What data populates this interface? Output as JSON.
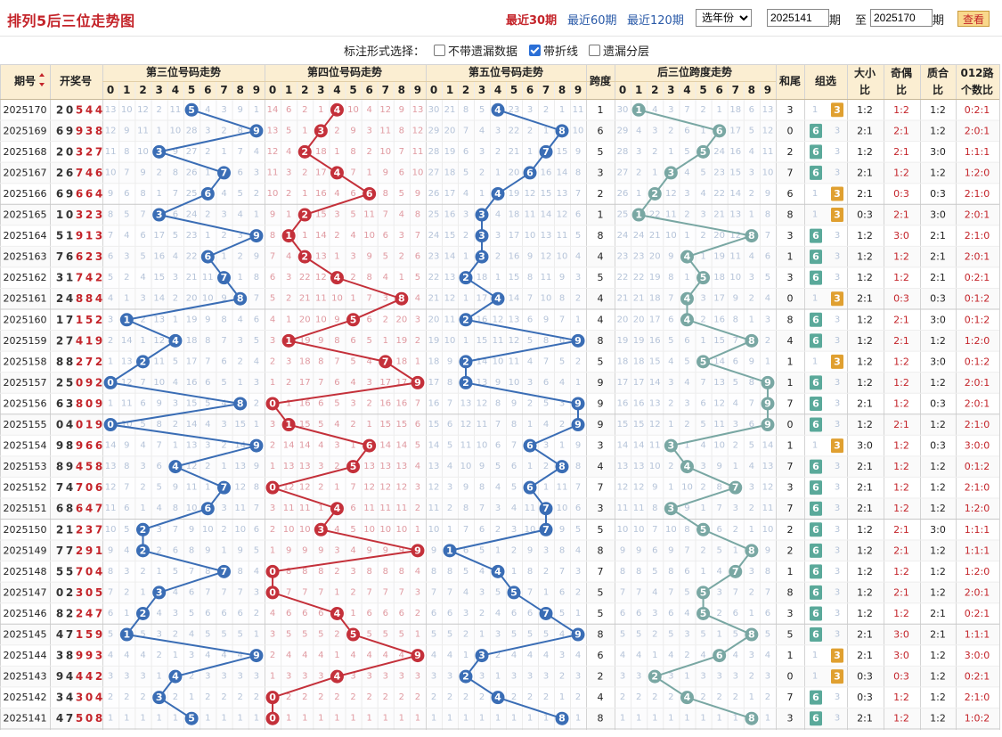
{
  "page": {
    "title": "排列5后三位走势图"
  },
  "ranges": [
    {
      "label": "最近30期",
      "active": true
    },
    {
      "label": "最近60期",
      "active": false
    },
    {
      "label": "最近120期",
      "active": false
    }
  ],
  "filter": {
    "year_label": "选年份",
    "start_issue": "2025141",
    "issue_unit": "期",
    "to_label": "至",
    "end_issue": "2025170",
    "query_label": "查看"
  },
  "options": {
    "label": "标注形式选择：",
    "items": [
      {
        "label": "不带遗漏数据",
        "checked": false
      },
      {
        "label": "带折线",
        "checked": true
      },
      {
        "label": "遗漏分层",
        "checked": false
      }
    ]
  },
  "colors": {
    "header_bg": "#fbeed2",
    "third": "#3a6db5",
    "fourth": "#c4303a",
    "fifth": "#3a6db5",
    "span": "#79a7a3",
    "badge_green": "#5aa99a",
    "badge_orange": "#e0a030",
    "red_text": "#c4242a"
  },
  "headers": {
    "issue": "期号",
    "sort_icon": "sort-arrows-icon",
    "draw": "开奖号",
    "third_group": "第三位号码走势",
    "fourth_group": "第四位号码走势",
    "fifth_group": "第五位号码走势",
    "span": "跨度",
    "span_group": "后三位跨度走势",
    "tail": "和尾",
    "combo": "组选",
    "size_l1": "大小",
    "size_l2": "比",
    "parity_l1": "奇偶",
    "parity_l2": "比",
    "prime_l1": "质合",
    "prime_l2": "比",
    "road_l1": "012路",
    "road_l2": "个数比",
    "digits": [
      "0",
      "1",
      "2",
      "3",
      "4",
      "5",
      "6",
      "7",
      "8",
      "9"
    ]
  },
  "chart_data": {
    "type": "table",
    "rows": [
      {
        "issue": "2025170",
        "draw": "20544",
        "d3": 5,
        "d4": 4,
        "d5": 4,
        "span": 1,
        "tail": 3,
        "group": "3",
        "size": "1:2",
        "parity": "1:2",
        "prime": "1:2",
        "road": "0:2:1"
      },
      {
        "issue": "2025169",
        "draw": "69938",
        "d3": 9,
        "d4": 3,
        "d5": 8,
        "span": 6,
        "tail": 0,
        "group": "6",
        "size": "2:1",
        "parity": "2:1",
        "prime": "1:2",
        "road": "2:0:1"
      },
      {
        "issue": "2025168",
        "draw": "20327",
        "d3": 3,
        "d4": 2,
        "d5": 7,
        "span": 5,
        "tail": 2,
        "group": "6",
        "size": "1:2",
        "parity": "2:1",
        "prime": "3:0",
        "road": "1:1:1"
      },
      {
        "issue": "2025167",
        "draw": "26746",
        "d3": 7,
        "d4": 4,
        "d5": 6,
        "span": 3,
        "tail": 7,
        "group": "6",
        "size": "2:1",
        "parity": "1:2",
        "prime": "1:2",
        "road": "1:2:0"
      },
      {
        "issue": "2025166",
        "draw": "69664",
        "d3": 6,
        "d4": 6,
        "d5": 4,
        "span": 2,
        "tail": 6,
        "group": "3",
        "size": "2:1",
        "parity": "0:3",
        "prime": "0:3",
        "road": "2:1:0"
      },
      {
        "issue": "2025165",
        "draw": "10323",
        "d3": 3,
        "d4": 2,
        "d5": 3,
        "span": 1,
        "tail": 8,
        "group": "3",
        "size": "0:3",
        "parity": "2:1",
        "prime": "3:0",
        "road": "2:0:1"
      },
      {
        "issue": "2025164",
        "draw": "51913",
        "d3": 9,
        "d4": 1,
        "d5": 3,
        "span": 8,
        "tail": 3,
        "group": "6",
        "size": "1:2",
        "parity": "3:0",
        "prime": "2:1",
        "road": "2:1:0"
      },
      {
        "issue": "2025163",
        "draw": "76623",
        "d3": 6,
        "d4": 2,
        "d5": 3,
        "span": 4,
        "tail": 1,
        "group": "6",
        "size": "1:2",
        "parity": "1:2",
        "prime": "2:1",
        "road": "2:0:1"
      },
      {
        "issue": "2025162",
        "draw": "31742",
        "d3": 7,
        "d4": 4,
        "d5": 2,
        "span": 5,
        "tail": 3,
        "group": "6",
        "size": "1:2",
        "parity": "1:2",
        "prime": "2:1",
        "road": "0:2:1"
      },
      {
        "issue": "2025161",
        "draw": "24884",
        "d3": 8,
        "d4": 8,
        "d5": 4,
        "span": 4,
        "tail": 0,
        "group": "3",
        "size": "2:1",
        "parity": "0:3",
        "prime": "0:3",
        "road": "0:1:2"
      },
      {
        "issue": "2025160",
        "draw": "17152",
        "d3": 1,
        "d4": 5,
        "d5": 2,
        "span": 4,
        "tail": 8,
        "group": "6",
        "size": "1:2",
        "parity": "2:1",
        "prime": "3:0",
        "road": "0:1:2"
      },
      {
        "issue": "2025159",
        "draw": "27419",
        "d3": 4,
        "d4": 1,
        "d5": 9,
        "span": 8,
        "tail": 4,
        "group": "6",
        "size": "1:2",
        "parity": "2:1",
        "prime": "1:2",
        "road": "1:2:0"
      },
      {
        "issue": "2025158",
        "draw": "88272",
        "d3": 2,
        "d4": 7,
        "d5": 2,
        "span": 5,
        "tail": 1,
        "group": "3",
        "size": "1:2",
        "parity": "1:2",
        "prime": "3:0",
        "road": "0:1:2"
      },
      {
        "issue": "2025157",
        "draw": "25092",
        "d3": 0,
        "d4": 9,
        "d5": 2,
        "span": 9,
        "tail": 1,
        "group": "6",
        "size": "1:2",
        "parity": "1:2",
        "prime": "1:2",
        "road": "2:0:1"
      },
      {
        "issue": "2025156",
        "draw": "63809",
        "d3": 8,
        "d4": 0,
        "d5": 9,
        "span": 9,
        "tail": 7,
        "group": "6",
        "size": "2:1",
        "parity": "1:2",
        "prime": "0:3",
        "road": "2:0:1"
      },
      {
        "issue": "2025155",
        "draw": "04019",
        "d3": 0,
        "d4": 1,
        "d5": 9,
        "span": 9,
        "tail": 0,
        "group": "6",
        "size": "1:2",
        "parity": "2:1",
        "prime": "1:2",
        "road": "2:1:0"
      },
      {
        "issue": "2025154",
        "draw": "98966",
        "d3": 9,
        "d4": 6,
        "d5": 6,
        "span": 3,
        "tail": 1,
        "group": "3",
        "size": "3:0",
        "parity": "1:2",
        "prime": "0:3",
        "road": "3:0:0"
      },
      {
        "issue": "2025153",
        "draw": "89458",
        "d3": 4,
        "d4": 5,
        "d5": 8,
        "span": 4,
        "tail": 7,
        "group": "6",
        "size": "2:1",
        "parity": "1:2",
        "prime": "1:2",
        "road": "0:1:2"
      },
      {
        "issue": "2025152",
        "draw": "74706",
        "d3": 7,
        "d4": 0,
        "d5": 6,
        "span": 7,
        "tail": 3,
        "group": "6",
        "size": "2:1",
        "parity": "1:2",
        "prime": "1:2",
        "road": "2:1:0"
      },
      {
        "issue": "2025151",
        "draw": "68647",
        "d3": 6,
        "d4": 4,
        "d5": 7,
        "span": 3,
        "tail": 7,
        "group": "6",
        "size": "2:1",
        "parity": "1:2",
        "prime": "1:2",
        "road": "1:2:0"
      },
      {
        "issue": "2025150",
        "draw": "21237",
        "d3": 2,
        "d4": 3,
        "d5": 7,
        "span": 5,
        "tail": 2,
        "group": "6",
        "size": "1:2",
        "parity": "2:1",
        "prime": "3:0",
        "road": "1:1:1"
      },
      {
        "issue": "2025149",
        "draw": "77291",
        "d3": 2,
        "d4": 9,
        "d5": 1,
        "span": 8,
        "tail": 2,
        "group": "6",
        "size": "1:2",
        "parity": "2:1",
        "prime": "1:2",
        "road": "1:1:1"
      },
      {
        "issue": "2025148",
        "draw": "55704",
        "d3": 7,
        "d4": 0,
        "d5": 4,
        "span": 7,
        "tail": 1,
        "group": "6",
        "size": "1:2",
        "parity": "1:2",
        "prime": "1:2",
        "road": "1:2:0"
      },
      {
        "issue": "2025147",
        "draw": "02305",
        "d3": 3,
        "d4": 0,
        "d5": 5,
        "span": 5,
        "tail": 8,
        "group": "6",
        "size": "1:2",
        "parity": "2:1",
        "prime": "1:2",
        "road": "2:0:1"
      },
      {
        "issue": "2025146",
        "draw": "82247",
        "d3": 2,
        "d4": 4,
        "d5": 7,
        "span": 5,
        "tail": 3,
        "group": "6",
        "size": "1:2",
        "parity": "1:2",
        "prime": "2:1",
        "road": "0:2:1"
      },
      {
        "issue": "2025145",
        "draw": "47159",
        "d3": 1,
        "d4": 5,
        "d5": 9,
        "span": 8,
        "tail": 5,
        "group": "6",
        "size": "2:1",
        "parity": "3:0",
        "prime": "2:1",
        "road": "1:1:1"
      },
      {
        "issue": "2025144",
        "draw": "38993",
        "d3": 9,
        "d4": 9,
        "d5": 3,
        "span": 6,
        "tail": 1,
        "group": "3",
        "size": "2:1",
        "parity": "3:0",
        "prime": "1:2",
        "road": "3:0:0"
      },
      {
        "issue": "2025143",
        "draw": "94442",
        "d3": 4,
        "d4": 4,
        "d5": 2,
        "span": 2,
        "tail": 0,
        "group": "3",
        "size": "0:3",
        "parity": "0:3",
        "prime": "1:2",
        "road": "0:2:1"
      },
      {
        "issue": "2025142",
        "draw": "34304",
        "d3": 3,
        "d4": 0,
        "d5": 4,
        "span": 4,
        "tail": 7,
        "group": "6",
        "size": "0:3",
        "parity": "1:2",
        "prime": "1:2",
        "road": "2:1:0"
      },
      {
        "issue": "2025141",
        "draw": "47508",
        "d3": 5,
        "d4": 0,
        "d5": 8,
        "span": 8,
        "tail": 3,
        "group": "6",
        "size": "2:1",
        "parity": "1:2",
        "prime": "1:2",
        "road": "1:0:2"
      }
    ]
  }
}
